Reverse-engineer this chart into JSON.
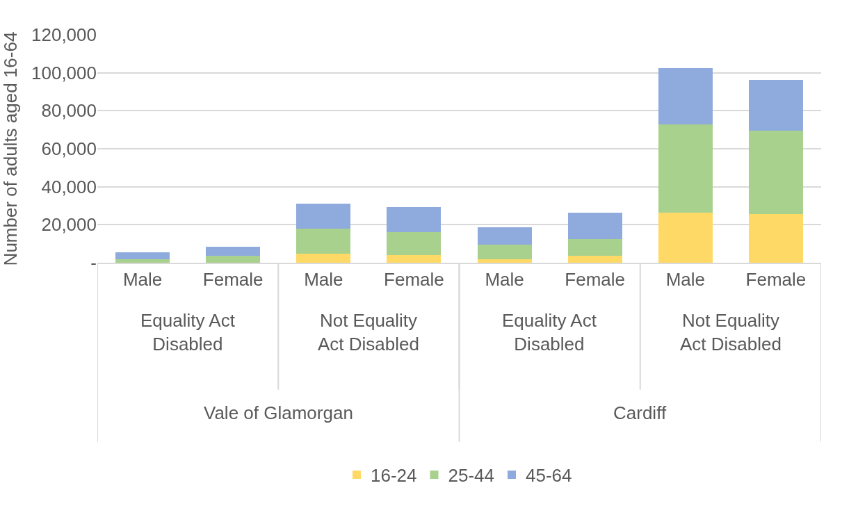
{
  "chart_data": {
    "type": "bar",
    "stacked": true,
    "ylabel": "Number of adults aged 16-64",
    "categories": [
      "Male",
      "Female",
      "Male",
      "Female",
      "Male",
      "Female",
      "Male",
      "Female"
    ],
    "annotations": [
      "Equality Act\nDisabled",
      "Not Equality\nAct Disabled",
      "Equality Act\nDisabled",
      "Not Equality\nAct Disabled",
      "Vale of Glamorgan",
      "Cardiff"
    ],
    "series": [
      {
        "name": "16-24",
        "color": "#ffd966",
        "values": [
          null,
          null,
          4900,
          4200,
          1800,
          3800,
          26200,
          25600
        ]
      },
      {
        "name": "25-44",
        "color": "#a9d18e",
        "values": [
          1900,
          3600,
          13000,
          11800,
          7700,
          8700,
          46600,
          43800
        ]
      },
      {
        "name": "45-64",
        "color": "#8faadc",
        "values": [
          3500,
          4800,
          13200,
          13300,
          9000,
          13700,
          29600,
          26700
        ]
      }
    ],
    "ylim": [
      0,
      120000
    ],
    "yticks": [
      {
        "value": 0,
        "label": "-"
      },
      {
        "value": 20000,
        "label": "20,000"
      },
      {
        "value": 40000,
        "label": "40,000"
      },
      {
        "value": 60000,
        "label": "60,000"
      },
      {
        "value": 80000,
        "label": "80,000"
      },
      {
        "value": 100000,
        "label": "100,000"
      },
      {
        "value": 120000,
        "label": "120,000"
      }
    ],
    "grid": "y",
    "legend": "bottom"
  }
}
